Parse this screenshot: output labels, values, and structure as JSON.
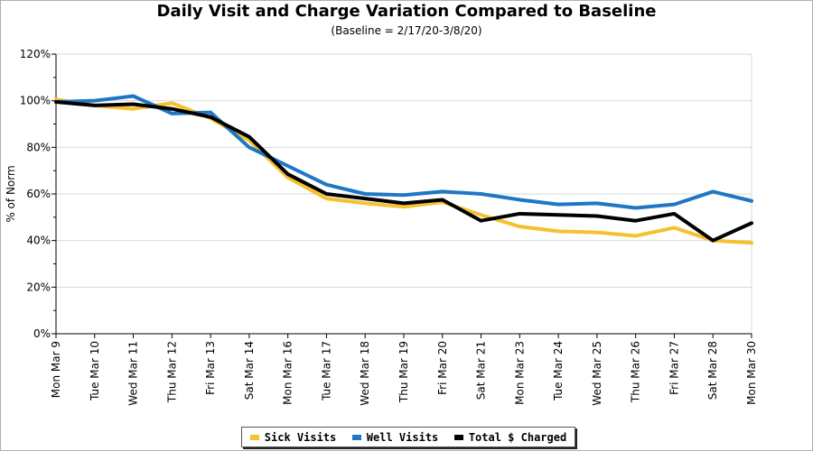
{
  "chart_data": {
    "type": "line",
    "title": "Daily Visit and Charge Variation Compared to Baseline",
    "subtitle": "(Baseline = 2/17/20-3/8/20)",
    "ylabel": "% of Norm",
    "xlabel": "",
    "ylim": [
      0,
      120
    ],
    "yticks": [
      "0%",
      "20%",
      "40%",
      "60%",
      "80%",
      "100%",
      "120%"
    ],
    "yticks_values": [
      0,
      20,
      40,
      60,
      80,
      100,
      120
    ],
    "grid": true,
    "legend_position": "bottom",
    "categories": [
      "Mon Mar 9",
      "Tue Mar 10",
      "Wed Mar 11",
      "Thu Mar 12",
      "Fri Mar 13",
      "Sat Mar 14",
      "Mon Mar 16",
      "Tue Mar 17",
      "Wed Mar 18",
      "Thu Mar 19",
      "Fri Mar 20",
      "Sat Mar 21",
      "Mon Mar 23",
      "Tue Mar 24",
      "Wed Mar 25",
      "Thu Mar 26",
      "Fri Mar 27",
      "Sat Mar 28",
      "Mon Mar 30"
    ],
    "series": [
      {
        "name": "Sick Visits",
        "color": "#f5c12e",
        "values": [
          100.5,
          98,
          96.5,
          99,
          92.5,
          83,
          67,
          58,
          56,
          54.5,
          56.5,
          51,
          46,
          44,
          43.5,
          42,
          45.5,
          40,
          39
        ]
      },
      {
        "name": "Well Visits",
        "color": "#1f77c4",
        "values": [
          99.5,
          100,
          102,
          94.5,
          95,
          80,
          72,
          64,
          60,
          59.5,
          61,
          60,
          57.5,
          55.5,
          56,
          54,
          55.5,
          61,
          57
        ]
      },
      {
        "name": "Total $ Charged",
        "color": "#000000",
        "values": [
          99.5,
          98,
          98.5,
          96.5,
          93,
          84.5,
          68.5,
          60,
          58,
          56,
          57.5,
          48.5,
          51.5,
          51,
          50.5,
          48.5,
          51.5,
          40,
          47.5
        ]
      }
    ]
  }
}
